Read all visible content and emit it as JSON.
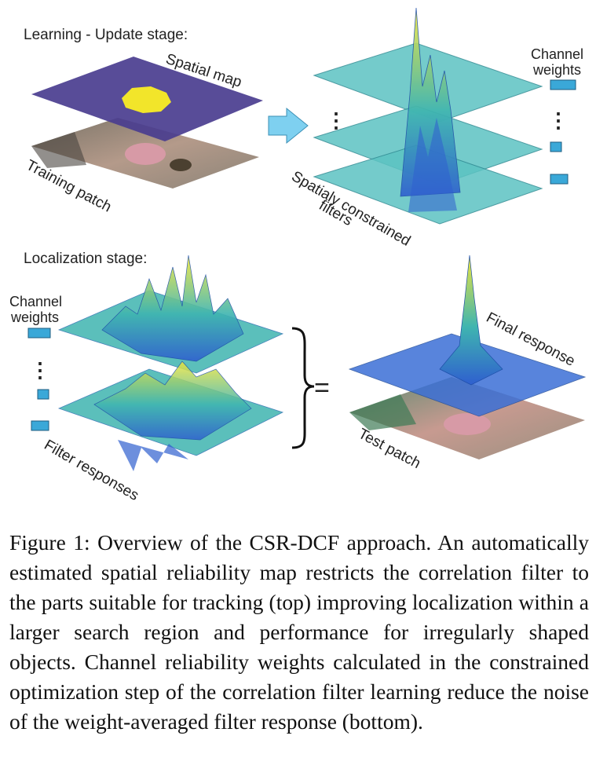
{
  "figure": {
    "update_stage_title": "Learning - Update stage:",
    "spatial_map_label": "Spatial map",
    "training_patch_label": "Training patch",
    "channel_weights_top": [
      "Channel",
      "weights"
    ],
    "constrained_filters_label": [
      "Spatialy constrained",
      "filters"
    ],
    "localization_stage_title": "Localization stage:",
    "channel_weights_bottom": [
      "Channel",
      "weights"
    ],
    "filter_responses_label": "Filter responses",
    "equals_sign": "=",
    "final_response_label": "Final response",
    "test_patch_label": "Test patch",
    "colors": {
      "spatial_map_fill": "#4a3d8f",
      "spatial_map_blob": "#f2e52a",
      "filter_plane": "#5cc3c2",
      "surface_blue": "#3b6fd6",
      "surface_teal": "#3fb5b0",
      "surface_yellow": "#e8e23c",
      "weight_box": "#3aa8d8",
      "arrow": "#7ed0f0"
    }
  },
  "caption": {
    "text": "Figure 1: Overview of the CSR-DCF approach. An automatically estimated spatial reliability map restricts the correlation filter to the parts suitable for tracking (top) improving localization within a larger search region and performance for irregularly shaped objects. Channel reliability weights calculated in the constrained optimization step of the correlation filter learning reduce the noise of the weight-averaged filter response (bottom)."
  }
}
